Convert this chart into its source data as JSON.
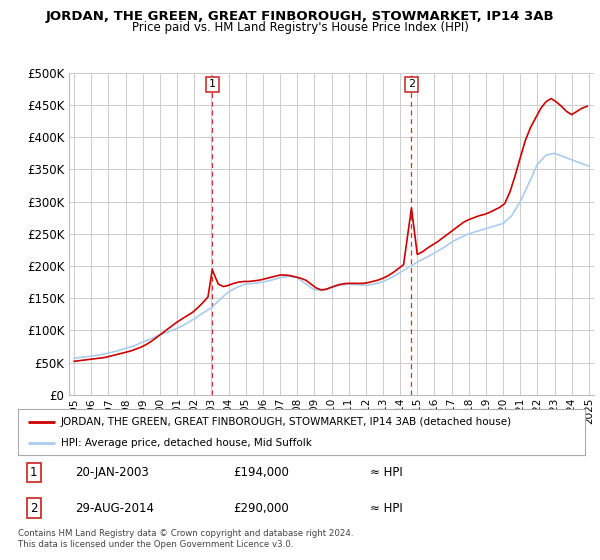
{
  "title": "JORDAN, THE GREEN, GREAT FINBOROUGH, STOWMARKET, IP14 3AB",
  "subtitle": "Price paid vs. HM Land Registry's House Price Index (HPI)",
  "background_color": "#ffffff",
  "plot_bg_color": "#ffffff",
  "grid_color": "#cccccc",
  "line_color": "#cc0000",
  "hpi_color": "#aaccee",
  "ylim": [
    0,
    500000
  ],
  "yticks": [
    0,
    50000,
    100000,
    150000,
    200000,
    250000,
    300000,
    350000,
    400000,
    450000,
    500000
  ],
  "ytick_labels": [
    "£0",
    "£50K",
    "£100K",
    "£150K",
    "£200K",
    "£250K",
    "£300K",
    "£350K",
    "£400K",
    "£450K",
    "£500K"
  ],
  "xlim_min": 1994.7,
  "xlim_max": 2025.3,
  "marker1_x": 2003.05,
  "marker2_x": 2014.66,
  "legend_house_label": "JORDAN, THE GREEN, GREAT FINBOROUGH, STOWMARKET, IP14 3AB (detached house)",
  "legend_hpi_label": "HPI: Average price, detached house, Mid Suffolk",
  "annotation1": "20-JAN-2003",
  "annotation1_price": "£194,000",
  "annotation1_hpi": "≈ HPI",
  "annotation2": "29-AUG-2014",
  "annotation2_price": "£290,000",
  "annotation2_hpi": "≈ HPI",
  "copyright": "Contains HM Land Registry data © Crown copyright and database right 2024.\nThis data is licensed under the Open Government Licence v3.0.",
  "hpi_x": [
    1995.0,
    1995.5,
    1996.0,
    1996.5,
    1997.0,
    1997.5,
    1998.0,
    1998.5,
    1999.0,
    1999.5,
    2000.0,
    2000.5,
    2001.0,
    2001.5,
    2002.0,
    2002.5,
    2003.0,
    2003.5,
    2004.0,
    2004.5,
    2005.0,
    2005.5,
    2006.0,
    2006.5,
    2007.0,
    2007.5,
    2008.0,
    2008.5,
    2009.0,
    2009.5,
    2010.0,
    2010.5,
    2011.0,
    2011.5,
    2012.0,
    2012.5,
    2013.0,
    2013.5,
    2014.0,
    2014.5,
    2015.0,
    2015.5,
    2016.0,
    2016.5,
    2017.0,
    2017.5,
    2018.0,
    2018.5,
    2019.0,
    2019.5,
    2020.0,
    2020.5,
    2021.0,
    2021.5,
    2022.0,
    2022.5,
    2023.0,
    2023.5,
    2024.0,
    2024.5,
    2025.0
  ],
  "hpi_y": [
    57000,
    58500,
    60000,
    62000,
    65000,
    68000,
    72000,
    76000,
    82000,
    87000,
    93000,
    98000,
    103000,
    110000,
    118000,
    127000,
    135000,
    148000,
    160000,
    167000,
    172000,
    173000,
    175000,
    178000,
    182000,
    184000,
    182000,
    172000,
    163000,
    162000,
    167000,
    170000,
    172000,
    171000,
    170000,
    172000,
    176000,
    182000,
    190000,
    198000,
    206000,
    213000,
    220000,
    228000,
    237000,
    244000,
    250000,
    254000,
    258000,
    262000,
    266000,
    278000,
    300000,
    328000,
    358000,
    372000,
    375000,
    370000,
    365000,
    360000,
    355000
  ],
  "price_x": [
    1995.0,
    1995.3,
    1995.6,
    1995.9,
    1996.2,
    1996.5,
    1996.8,
    1997.1,
    1997.4,
    1997.7,
    1998.0,
    1998.3,
    1998.6,
    1998.9,
    1999.2,
    1999.5,
    1999.8,
    2000.1,
    2000.4,
    2000.7,
    2001.0,
    2001.3,
    2001.6,
    2001.9,
    2002.2,
    2002.5,
    2002.8,
    2003.05,
    2003.4,
    2003.7,
    2004.0,
    2004.3,
    2004.6,
    2004.9,
    2005.2,
    2005.5,
    2005.8,
    2006.1,
    2006.4,
    2006.7,
    2007.0,
    2007.3,
    2007.6,
    2007.9,
    2008.2,
    2008.5,
    2008.8,
    2009.1,
    2009.4,
    2009.7,
    2010.0,
    2010.3,
    2010.6,
    2010.9,
    2011.2,
    2011.5,
    2011.8,
    2012.1,
    2012.4,
    2012.7,
    2013.0,
    2013.3,
    2013.6,
    2013.9,
    2014.2,
    2014.66,
    2015.0,
    2015.3,
    2015.6,
    2015.9,
    2016.2,
    2016.5,
    2016.8,
    2017.1,
    2017.4,
    2017.7,
    2018.0,
    2018.3,
    2018.6,
    2018.9,
    2019.2,
    2019.5,
    2019.8,
    2020.1,
    2020.4,
    2020.7,
    2021.0,
    2021.3,
    2021.6,
    2021.9,
    2022.2,
    2022.5,
    2022.8,
    2023.1,
    2023.4,
    2023.7,
    2024.0,
    2024.3,
    2024.6,
    2024.9
  ],
  "price_y": [
    52000,
    53000,
    54000,
    55000,
    56000,
    57000,
    58000,
    60000,
    62000,
    64000,
    66000,
    68000,
    71000,
    74000,
    78000,
    83000,
    89000,
    95000,
    101000,
    107000,
    113000,
    118000,
    123000,
    128000,
    135000,
    143000,
    152000,
    194000,
    172000,
    168000,
    170000,
    173000,
    175000,
    176000,
    176000,
    177000,
    178000,
    180000,
    182000,
    184000,
    186000,
    186000,
    185000,
    183000,
    181000,
    178000,
    172000,
    166000,
    163000,
    164000,
    167000,
    170000,
    172000,
    173000,
    173000,
    173000,
    173000,
    174000,
    176000,
    178000,
    181000,
    185000,
    190000,
    196000,
    202000,
    290000,
    218000,
    222000,
    228000,
    233000,
    238000,
    244000,
    250000,
    256000,
    262000,
    268000,
    272000,
    275000,
    278000,
    280000,
    283000,
    287000,
    291000,
    297000,
    315000,
    340000,
    368000,
    395000,
    415000,
    430000,
    445000,
    455000,
    460000,
    455000,
    448000,
    440000,
    435000,
    440000,
    445000,
    448000
  ]
}
